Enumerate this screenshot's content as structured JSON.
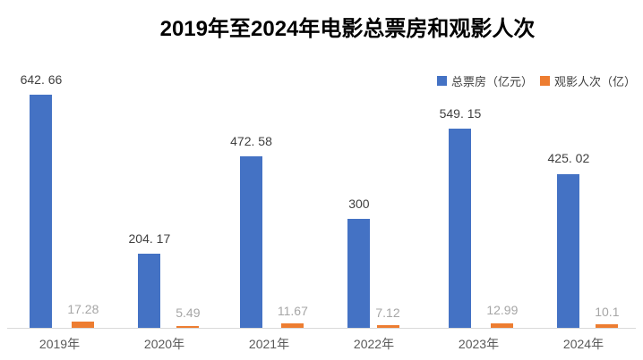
{
  "title": "2019年至2024年电影总票房和观影人次",
  "colors": {
    "box_office_blue": "#4472C4",
    "attendance_orange": "#ED7D31",
    "axis_line": "#D9D9D9",
    "title_text": "#000000",
    "category_text": "#595959",
    "blue_value_label": "#404040",
    "orange_value_label": "#A6A6A6",
    "background": "#FFFFFF"
  },
  "chart_data": {
    "type": "bar",
    "title": "2019年至2024年电影总票房和观影人次",
    "xlabel": "",
    "ylabel": "",
    "categories": [
      "2019年",
      "2020年",
      "2021年",
      "2022年",
      "2023年",
      "2024年"
    ],
    "series": [
      {
        "name": "总票房（亿元）",
        "color": "#4472C4",
        "values": [
          642.66,
          204.17,
          472.58,
          300,
          549.15,
          425.02
        ],
        "labels": [
          "642. 66",
          "204. 17",
          "472. 58",
          "300",
          "549. 15",
          "425. 02"
        ],
        "label_color": "#404040"
      },
      {
        "name": "观影人次（亿）",
        "color": "#ED7D31",
        "values": [
          17.28,
          5.49,
          11.67,
          7.12,
          12.99,
          10.1
        ],
        "labels": [
          "17.28",
          "5.49",
          "11.67",
          "7.12",
          "12.99",
          "10.1"
        ],
        "label_color": "#A6A6A6"
      }
    ],
    "ylim": [
      0,
      700
    ],
    "grid": false,
    "y_axis_visible": false,
    "legend_position": "top-right",
    "data_labels": true
  }
}
